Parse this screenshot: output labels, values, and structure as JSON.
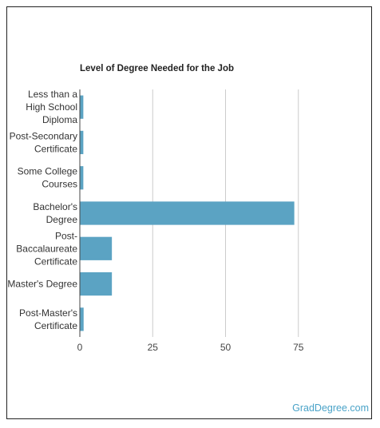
{
  "chart_data": {
    "type": "bar",
    "orientation": "horizontal",
    "title": "Level of Degree Needed for the Job",
    "categories": [
      [
        "Less than a",
        "High School",
        "Diploma"
      ],
      [
        "Post-Secondary",
        "Certificate"
      ],
      [
        "Some College",
        "Courses"
      ],
      [
        "Bachelor's",
        "Degree"
      ],
      [
        "Post-",
        "Baccalaureate",
        "Certificate"
      ],
      [
        "Master's Degree"
      ],
      [
        "Post-Master's",
        "Certificate"
      ]
    ],
    "values": [
      1.2,
      1.2,
      1.2,
      73.6,
      11.0,
      11.0,
      1.3
    ],
    "xticks": [
      0,
      25,
      50,
      75
    ],
    "xlim": [
      0,
      100
    ],
    "grid": true,
    "bar_color": "#5ba3c3"
  },
  "brand": "GradDegree.com"
}
